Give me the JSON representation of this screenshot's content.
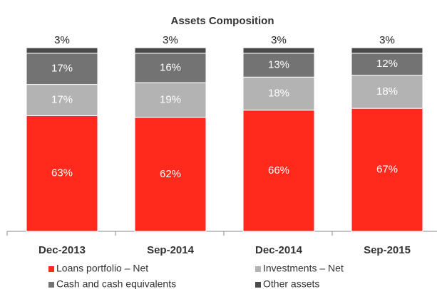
{
  "chart_data": {
    "type": "stacked_bar",
    "title": "Assets  Composition",
    "categories": [
      "Dec-2013",
      "Sep-2014",
      "Dec-2014",
      "Sep-2015"
    ],
    "ylim": [
      0,
      100
    ],
    "series": [
      {
        "name": "Loans portfolio – Net",
        "color": "#ff2a1c",
        "values": [
          63,
          62,
          66,
          67
        ],
        "value_labels": [
          "63%",
          "62%",
          "66%",
          "67%"
        ]
      },
      {
        "name": "Investments – Net",
        "color": "#b3b3b3",
        "values": [
          17,
          19,
          18,
          18
        ],
        "value_labels": [
          "17%",
          "19%",
          "18%",
          "18%"
        ]
      },
      {
        "name": "Cash and cash equivalents",
        "color": "#737373",
        "values": [
          17,
          16,
          13,
          12
        ],
        "value_labels": [
          "17%",
          "16%",
          "13%",
          "12%"
        ]
      },
      {
        "name": "Other assets",
        "color": "#4a4a4a",
        "values": [
          3,
          3,
          3,
          3
        ],
        "value_labels": [
          "3%",
          "3%",
          "3%",
          "3%"
        ]
      }
    ]
  }
}
